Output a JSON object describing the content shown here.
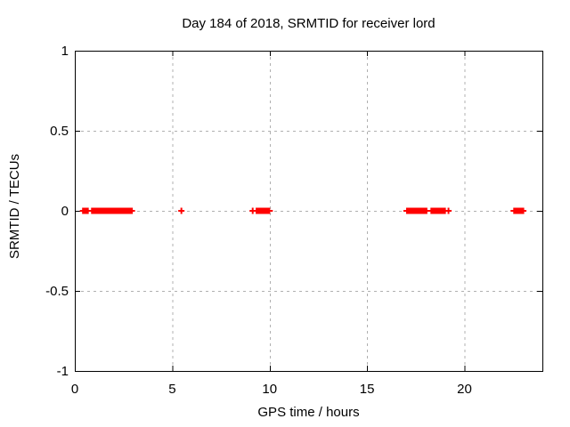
{
  "chart_data": {
    "type": "scatter",
    "title": "Day 184 of 2018, SRMTID for receiver lord",
    "xlabel": "GPS time / hours",
    "ylabel": "SRMTID / TECUs",
    "xlim": [
      0,
      24
    ],
    "ylim": [
      -1,
      1
    ],
    "xticks": [
      0,
      5,
      10,
      15,
      20
    ],
    "xtick_labels": [
      "0",
      "5",
      "10",
      "15",
      "20"
    ],
    "yticks": [
      1,
      0.5,
      0,
      -0.5,
      -1
    ],
    "ytick_labels": [
      "1",
      "0.5",
      "0",
      "-0.5",
      "-1"
    ],
    "grid": true,
    "legend_position": "none",
    "marker": "plus",
    "marker_color": "#ff0000",
    "grid_color": "#b0b0b0",
    "frame_color": "#000000",
    "series_y_value": 0,
    "isolated_points_hours": [
      0.42,
      0.88,
      0.95,
      2.93,
      5.47,
      9.13,
      19.18,
      23.02
    ],
    "dense_segments_hours": [
      [
        0.48,
        0.67
      ],
      [
        1.02,
        2.85
      ],
      [
        9.33,
        9.98
      ],
      [
        17.05,
        18.05
      ],
      [
        18.3,
        19.0
      ],
      [
        22.55,
        22.95
      ]
    ]
  },
  "layout_note": ""
}
